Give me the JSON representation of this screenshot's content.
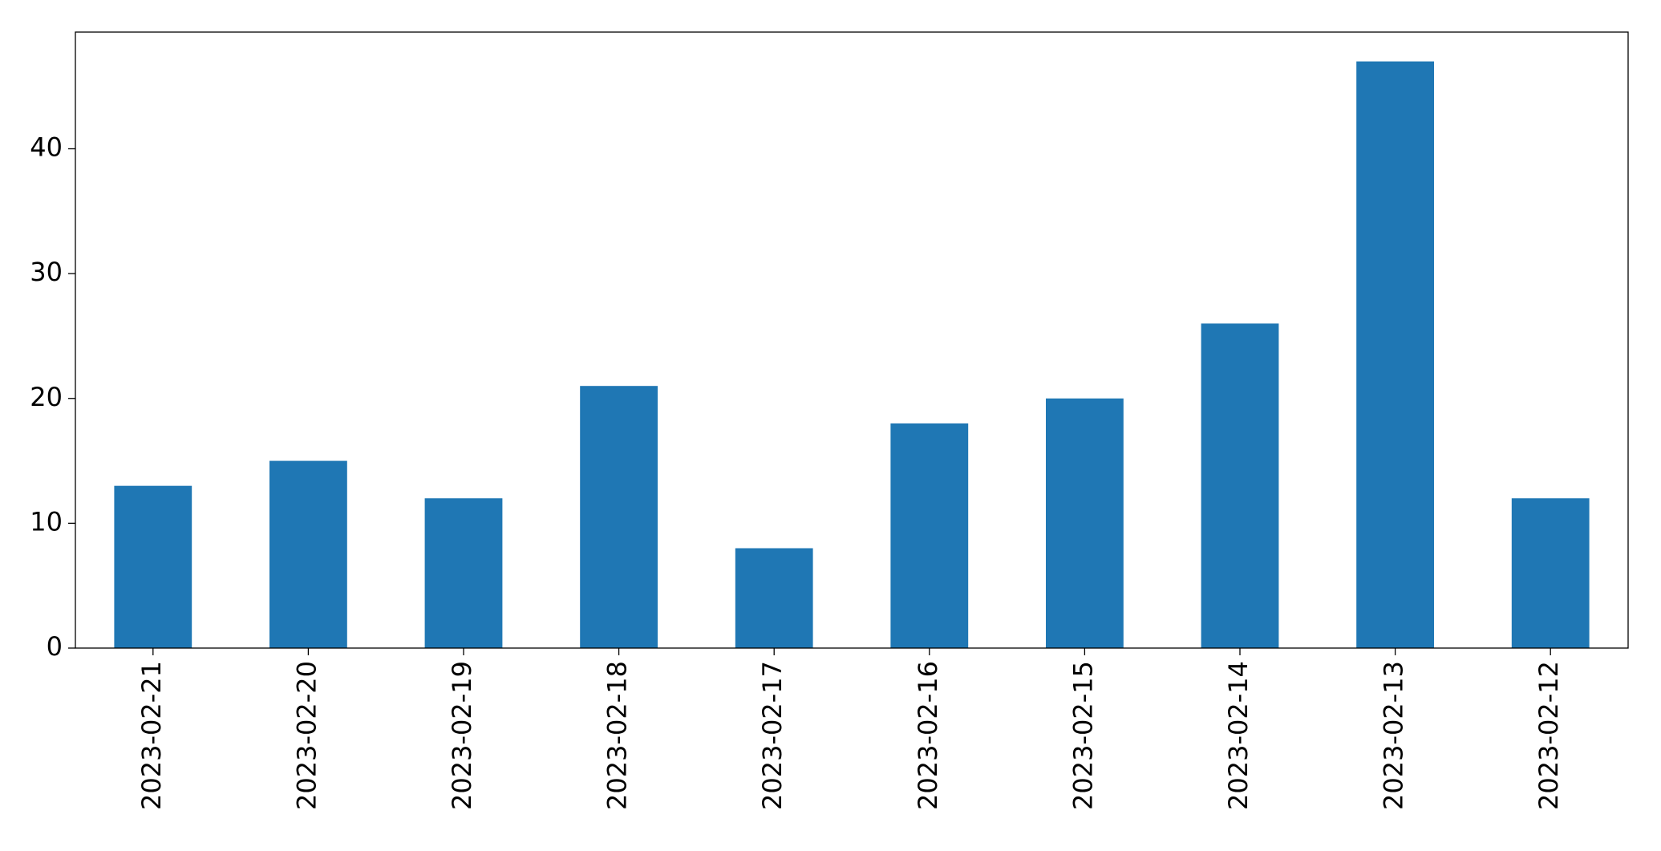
{
  "chart_data": {
    "type": "bar",
    "categories": [
      "2023-02-21",
      "2023-02-20",
      "2023-02-19",
      "2023-02-18",
      "2023-02-17",
      "2023-02-16",
      "2023-02-15",
      "2023-02-14",
      "2023-02-13",
      "2023-02-12"
    ],
    "values": [
      13,
      15,
      12,
      21,
      8,
      18,
      20,
      26,
      47,
      12
    ],
    "color": "#1f77b4",
    "ylim": [
      0,
      49.35
    ],
    "yticks": [
      0,
      10,
      20,
      30,
      40
    ],
    "grid": false
  }
}
